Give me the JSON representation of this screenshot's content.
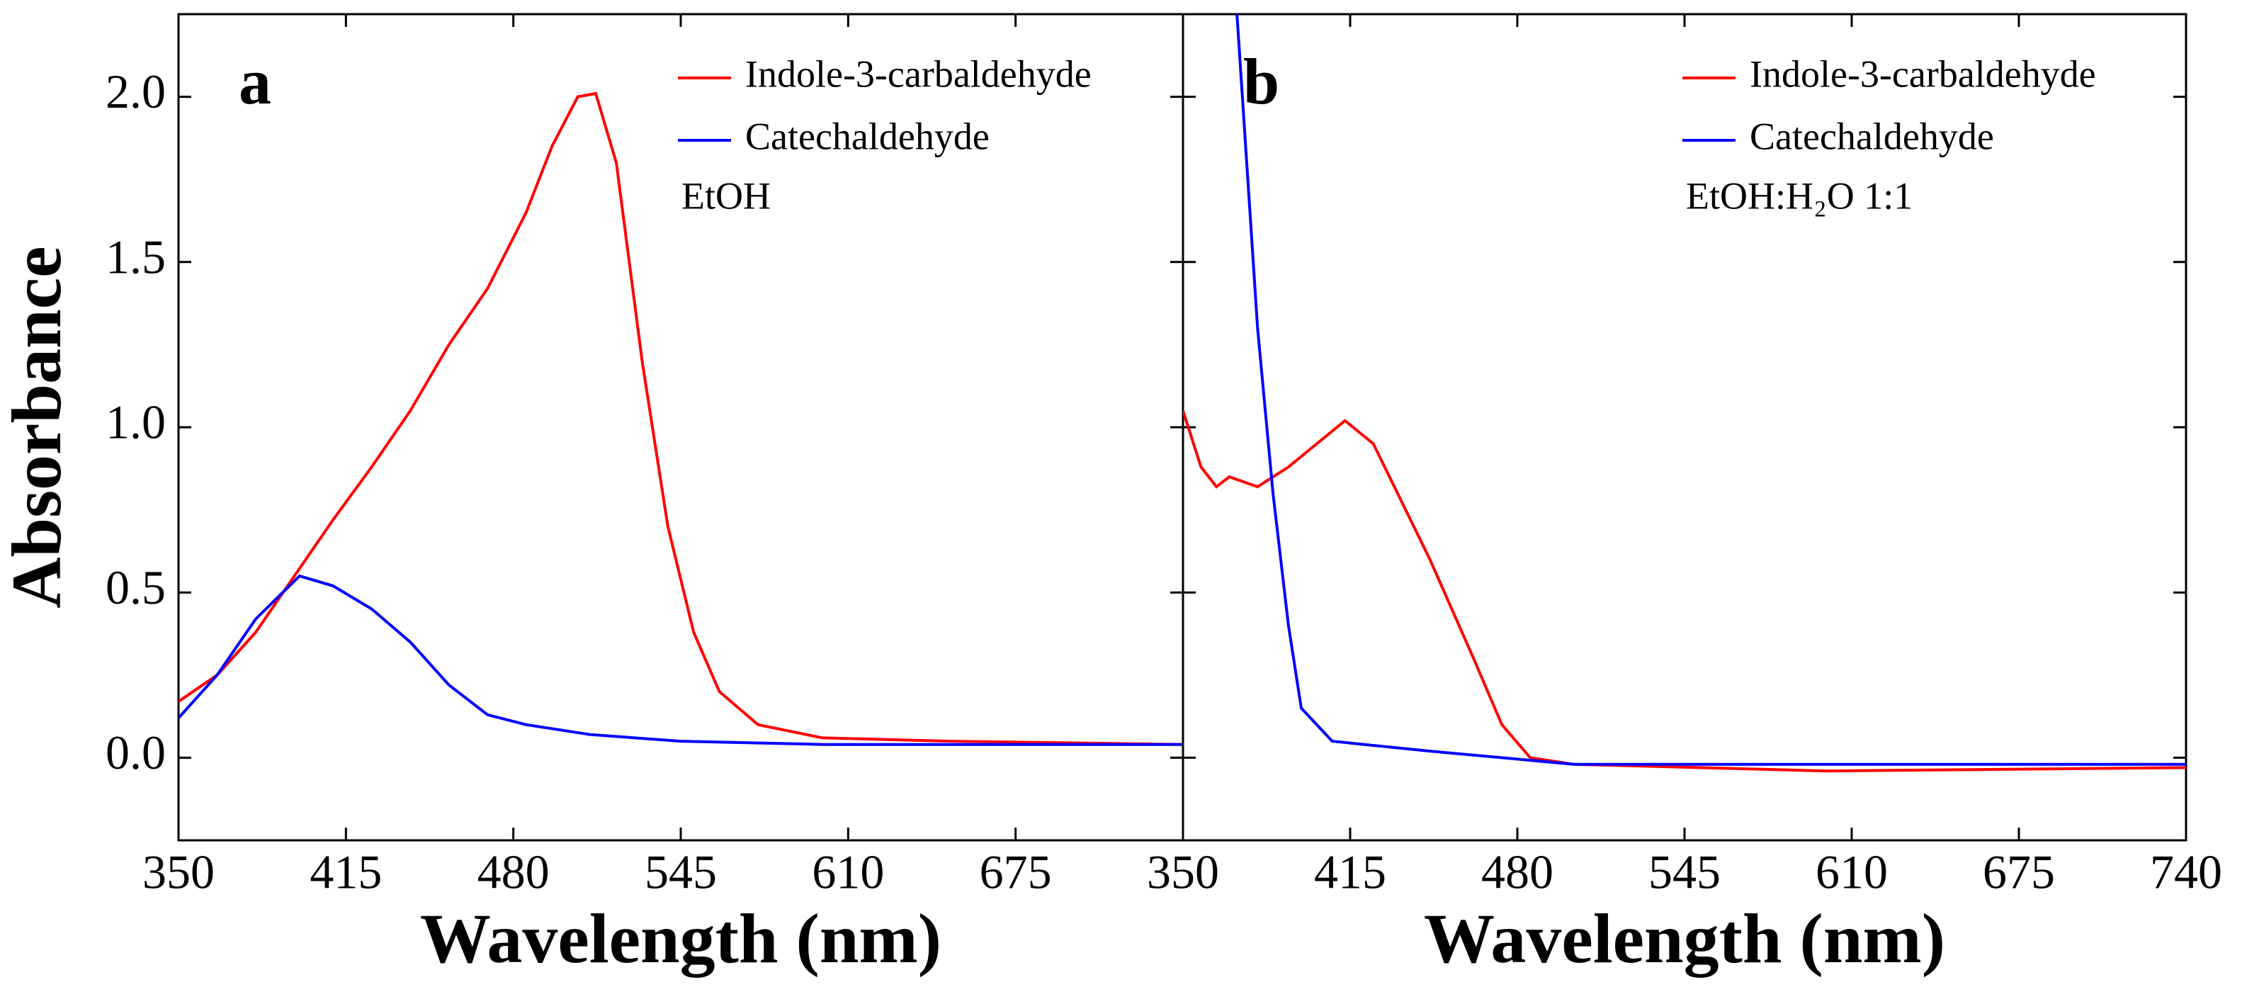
{
  "chart_data": [
    {
      "type": "line",
      "panel_label": "a",
      "xlabel": "Wavelength (nm)",
      "ylabel": "Absorbance",
      "annotation": "EtOH",
      "xlim": [
        350,
        740
      ],
      "xticks": [
        350,
        415,
        480,
        545,
        610,
        675
      ],
      "ylim": [
        -0.25,
        2.25
      ],
      "yticks": [
        {
          "value": 0,
          "label": "0.0"
        },
        0.5,
        {
          "value": 1,
          "label": "1.0"
        },
        1.5,
        {
          "value": 2,
          "label": "2.0"
        }
      ],
      "series": [
        {
          "name": "Indole-3-carbaldehyde",
          "color": "#ff0000",
          "x": [
            350,
            365,
            380,
            395,
            410,
            425,
            440,
            455,
            470,
            485,
            495,
            505,
            512,
            520,
            530,
            540,
            550,
            560,
            575,
            600,
            650,
            740
          ],
          "values": [
            0.17,
            0.25,
            0.38,
            0.55,
            0.72,
            0.88,
            1.05,
            1.25,
            1.42,
            1.65,
            1.85,
            2.0,
            2.01,
            1.8,
            1.2,
            0.7,
            0.38,
            0.2,
            0.1,
            0.06,
            0.05,
            0.04
          ]
        },
        {
          "name": "Catechaldehyde",
          "color": "#0000ff",
          "x": [
            350,
            365,
            380,
            397,
            410,
            425,
            440,
            455,
            470,
            485,
            510,
            545,
            600,
            740
          ],
          "values": [
            0.12,
            0.25,
            0.42,
            0.55,
            0.52,
            0.45,
            0.35,
            0.22,
            0.13,
            0.1,
            0.07,
            0.05,
            0.04,
            0.04
          ]
        }
      ]
    },
    {
      "type": "line",
      "panel_label": "b",
      "xlabel": "Wavelength (nm)",
      "annotation": "EtOH:H₂O 1:1",
      "xlim": [
        350,
        740
      ],
      "xticks": [
        350,
        415,
        480,
        545,
        610,
        675,
        740
      ],
      "ylim": [
        -0.25,
        2.25
      ],
      "yticks": [
        0,
        0.5,
        1,
        1.5,
        2
      ],
      "series": [
        {
          "name": "Indole-3-carbaldehyde",
          "color": "#ff0000",
          "x": [
            350,
            357,
            363,
            368,
            379,
            391,
            413,
            424,
            446,
            463,
            474,
            485,
            502,
            600,
            740
          ],
          "values": [
            1.05,
            0.88,
            0.82,
            0.85,
            0.82,
            0.88,
            1.02,
            0.95,
            0.6,
            0.3,
            0.1,
            0.0,
            -0.02,
            -0.04,
            -0.03
          ]
        },
        {
          "name": "Catechaldehyde",
          "color": "#0000ff",
          "x": [
            366,
            371,
            379,
            385,
            391,
            396,
            408,
            446,
            502,
            740
          ],
          "values": [
            2.5,
            2.25,
            1.3,
            0.8,
            0.4,
            0.15,
            0.05,
            0.02,
            -0.02,
            -0.02
          ]
        }
      ]
    }
  ]
}
